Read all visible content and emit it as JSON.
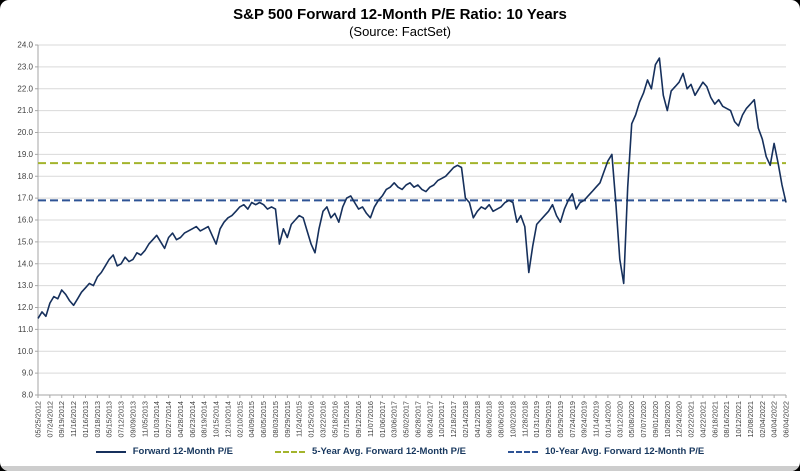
{
  "header": {
    "title": "S&P 500 Forward 12-Month P/E Ratio: 10 Years",
    "subtitle": "(Source: FactSet)"
  },
  "legend": [
    {
      "label": "Forward 12-Month P/E",
      "style": "solid",
      "color": "#16305c"
    },
    {
      "label": "5-Year Avg. Forward 12-Month P/E",
      "style": "dashed",
      "color": "#a3b42c"
    },
    {
      "label": "10-Year Avg. Forward 12-Month P/E",
      "style": "dashed",
      "color": "#2e5395"
    }
  ],
  "chart_data": {
    "type": "line",
    "title": "S&P 500 Forward 12-Month P/E Ratio: 10 Years",
    "subtitle": "(Source: FactSet)",
    "ylim": [
      8.0,
      24.0
    ],
    "ytick_step": 1.0,
    "grid": true,
    "legend_position": "bottom",
    "points_per_tick": 3,
    "x_tick_labels": [
      "05/25/2012",
      "07/24/2012",
      "09/19/2012",
      "11/16/2012",
      "01/16/2013",
      "03/18/2013",
      "05/15/2013",
      "07/12/2013",
      "09/09/2013",
      "11/05/2013",
      "01/03/2014",
      "02/27/2014",
      "04/28/2014",
      "06/23/2014",
      "08/19/2014",
      "10/15/2014",
      "12/10/2014",
      "02/10/2015",
      "04/09/2015",
      "06/05/2015",
      "08/03/2015",
      "09/29/2015",
      "11/24/2015",
      "01/25/2016",
      "03/22/2016",
      "05/18/2016",
      "07/15/2016",
      "09/12/2016",
      "11/07/2016",
      "01/06/2017",
      "03/06/2017",
      "05/02/2017",
      "06/28/2017",
      "08/24/2017",
      "10/20/2017",
      "12/18/2017",
      "02/14/2018",
      "04/12/2018",
      "06/08/2018",
      "08/06/2018",
      "10/02/2018",
      "11/28/2018",
      "01/31/2019",
      "03/29/2019",
      "05/29/2019",
      "07/24/2019",
      "09/24/2019",
      "11/14/2019",
      "01/14/2020",
      "03/12/2020",
      "05/08/2020",
      "07/07/2020",
      "09/01/2020",
      "10/28/2020",
      "12/24/2020",
      "02/22/2021",
      "04/22/2021",
      "06/18/2021",
      "08/16/2021",
      "10/12/2021",
      "12/08/2021",
      "02/04/2022",
      "04/04/2022",
      "06/04/2022"
    ],
    "series": [
      {
        "name": "Forward 12-Month P/E",
        "color": "#16305c",
        "style": "solid",
        "values": [
          11.5,
          11.8,
          11.6,
          12.2,
          12.5,
          12.4,
          12.8,
          12.6,
          12.3,
          12.1,
          12.4,
          12.7,
          12.9,
          13.1,
          13.0,
          13.4,
          13.6,
          13.9,
          14.2,
          14.4,
          13.9,
          14.0,
          14.3,
          14.1,
          14.2,
          14.5,
          14.4,
          14.6,
          14.9,
          15.1,
          15.3,
          15.0,
          14.7,
          15.2,
          15.4,
          15.1,
          15.2,
          15.4,
          15.5,
          15.6,
          15.7,
          15.5,
          15.6,
          15.7,
          15.3,
          14.9,
          15.6,
          15.9,
          16.1,
          16.2,
          16.4,
          16.6,
          16.7,
          16.5,
          16.8,
          16.7,
          16.8,
          16.7,
          16.5,
          16.6,
          16.5,
          14.9,
          15.6,
          15.2,
          15.8,
          16.0,
          16.2,
          16.1,
          15.5,
          14.9,
          14.5,
          15.6,
          16.4,
          16.6,
          16.1,
          16.3,
          15.9,
          16.6,
          17.0,
          17.1,
          16.8,
          16.5,
          16.6,
          16.3,
          16.1,
          16.6,
          16.9,
          17.1,
          17.4,
          17.5,
          17.7,
          17.5,
          17.4,
          17.6,
          17.7,
          17.5,
          17.6,
          17.4,
          17.3,
          17.5,
          17.6,
          17.8,
          17.9,
          18.0,
          18.2,
          18.4,
          18.5,
          18.4,
          17.0,
          16.8,
          16.1,
          16.4,
          16.6,
          16.5,
          16.7,
          16.4,
          16.5,
          16.6,
          16.8,
          16.9,
          16.8,
          15.9,
          16.2,
          15.7,
          13.6,
          14.8,
          15.8,
          16.0,
          16.2,
          16.4,
          16.7,
          16.2,
          15.9,
          16.5,
          16.9,
          17.2,
          16.5,
          16.8,
          16.9,
          17.1,
          17.3,
          17.5,
          17.7,
          18.2,
          18.7,
          19.0,
          16.8,
          14.2,
          13.1,
          17.5,
          20.4,
          20.8,
          21.4,
          21.8,
          22.4,
          22.0,
          23.1,
          23.4,
          21.7,
          21.0,
          21.9,
          22.1,
          22.3,
          22.7,
          22.0,
          22.2,
          21.7,
          22.0,
          22.3,
          22.1,
          21.6,
          21.3,
          21.5,
          21.2,
          21.1,
          21.0,
          20.5,
          20.3,
          20.8,
          21.1,
          21.3,
          21.5,
          20.2,
          19.7,
          18.9,
          18.5,
          19.5,
          18.6,
          17.6,
          16.8
        ]
      },
      {
        "name": "5-Year Avg. Forward 12-Month P/E",
        "color": "#a3b42c",
        "style": "dashed",
        "value": 18.6
      },
      {
        "name": "10-Year Avg. Forward 12-Month P/E",
        "color": "#2e5395",
        "style": "dashed",
        "value": 16.9
      }
    ]
  }
}
